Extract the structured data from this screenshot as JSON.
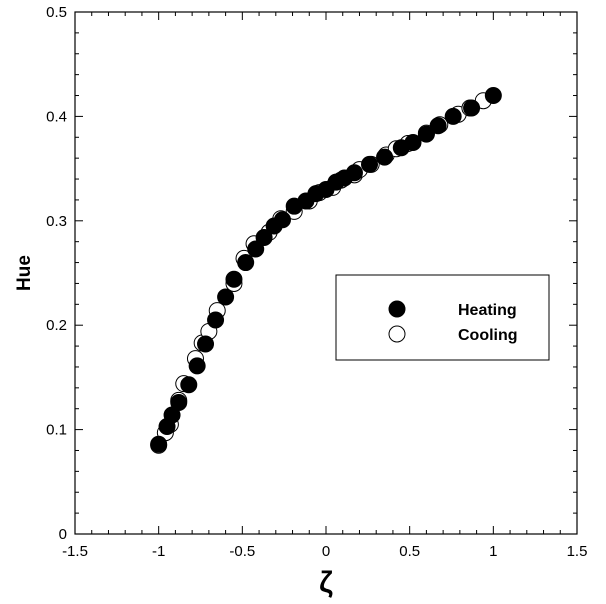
{
  "chart_data": {
    "type": "scatter",
    "title": "",
    "xlabel": "ζ",
    "ylabel": "Hue",
    "xlim": [
      -1.5,
      1.5
    ],
    "ylim": [
      0,
      0.5
    ],
    "x_ticks": [
      -1.5,
      -1,
      -0.5,
      0,
      0.5,
      1,
      1.5
    ],
    "x_tick_labels": [
      "-1.5",
      "-1",
      "-0.5",
      "0",
      "0.5",
      "1",
      "1.5"
    ],
    "y_ticks": [
      0,
      0.1,
      0.2,
      0.3,
      0.4,
      0.5
    ],
    "y_tick_labels": [
      "0",
      "0.1",
      "0.2",
      "0.3",
      "0.4",
      "0.5"
    ],
    "grid": false,
    "legend_position": "right",
    "series": [
      {
        "name": "Heating",
        "marker": "filled-circle",
        "color": "#000000",
        "points": [
          [
            -1.0,
            0.086
          ],
          [
            -0.95,
            0.103
          ],
          [
            -0.92,
            0.114
          ],
          [
            -0.88,
            0.126
          ],
          [
            -0.82,
            0.143
          ],
          [
            -0.77,
            0.161
          ],
          [
            -0.72,
            0.182
          ],
          [
            -0.66,
            0.205
          ],
          [
            -0.6,
            0.227
          ],
          [
            -0.55,
            0.244
          ],
          [
            -0.48,
            0.26
          ],
          [
            -0.42,
            0.273
          ],
          [
            -0.37,
            0.284
          ],
          [
            -0.31,
            0.295
          ],
          [
            -0.26,
            0.301
          ],
          [
            -0.19,
            0.314
          ],
          [
            -0.12,
            0.319
          ],
          [
            -0.06,
            0.326
          ],
          [
            0.0,
            0.33
          ],
          [
            0.06,
            0.337
          ],
          [
            0.11,
            0.341
          ],
          [
            0.17,
            0.346
          ],
          [
            0.26,
            0.354
          ],
          [
            0.35,
            0.361
          ],
          [
            0.45,
            0.37
          ],
          [
            0.52,
            0.375
          ],
          [
            0.6,
            0.383
          ],
          [
            0.67,
            0.391
          ],
          [
            0.76,
            0.4
          ],
          [
            0.87,
            0.408
          ],
          [
            1.0,
            0.42
          ]
        ]
      },
      {
        "name": "Cooling",
        "marker": "open-circle",
        "color": "#000000",
        "points": [
          [
            -1.0,
            0.085
          ],
          [
            -0.96,
            0.097
          ],
          [
            -0.93,
            0.105
          ],
          [
            -0.88,
            0.128
          ],
          [
            -0.85,
            0.144
          ],
          [
            -0.78,
            0.168
          ],
          [
            -0.74,
            0.183
          ],
          [
            -0.7,
            0.194
          ],
          [
            -0.65,
            0.214
          ],
          [
            -0.55,
            0.24
          ],
          [
            -0.49,
            0.264
          ],
          [
            -0.43,
            0.278
          ],
          [
            -0.34,
            0.289
          ],
          [
            -0.27,
            0.302
          ],
          [
            -0.19,
            0.309
          ],
          [
            -0.1,
            0.319
          ],
          [
            -0.04,
            0.327
          ],
          [
            0.04,
            0.332
          ],
          [
            0.09,
            0.339
          ],
          [
            0.17,
            0.344
          ],
          [
            0.2,
            0.349
          ],
          [
            0.27,
            0.354
          ],
          [
            0.36,
            0.363
          ],
          [
            0.42,
            0.369
          ],
          [
            0.49,
            0.374
          ],
          [
            0.6,
            0.384
          ],
          [
            0.68,
            0.392
          ],
          [
            0.79,
            0.402
          ],
          [
            0.86,
            0.408
          ],
          [
            0.94,
            0.415
          ]
        ]
      }
    ]
  }
}
